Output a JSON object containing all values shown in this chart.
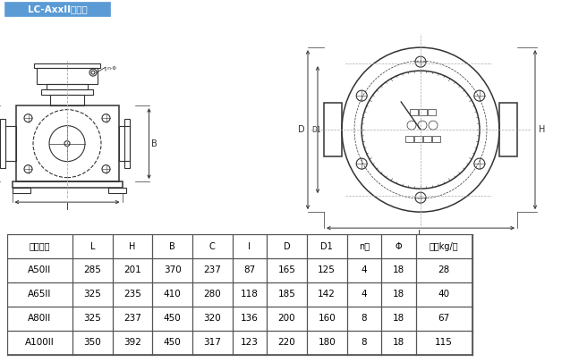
{
  "title": "LC-AxxII型轻型",
  "title_bg": "#5b9bd5",
  "title_color": "white",
  "background": "white",
  "table_headers": [
    "公称通径",
    "L",
    "H",
    "B",
    "C",
    "I",
    "D",
    "D1",
    "n个",
    "Φ",
    "重量kg/台"
  ],
  "table_rows": [
    [
      "A50II",
      "285",
      "201",
      "370",
      "237",
      "87",
      "165",
      "125",
      "4",
      "18",
      "28"
    ],
    [
      "A65II",
      "325",
      "235",
      "410",
      "280",
      "118",
      "185",
      "142",
      "4",
      "18",
      "40"
    ],
    [
      "A80II",
      "325",
      "237",
      "450",
      "320",
      "136",
      "200",
      "160",
      "8",
      "18",
      "67"
    ],
    [
      "A100II",
      "350",
      "392",
      "450",
      "317",
      "123",
      "220",
      "180",
      "8",
      "18",
      "115"
    ]
  ],
  "lc": "#333333",
  "dc": "#aaaaaa",
  "border_color": "#555555"
}
